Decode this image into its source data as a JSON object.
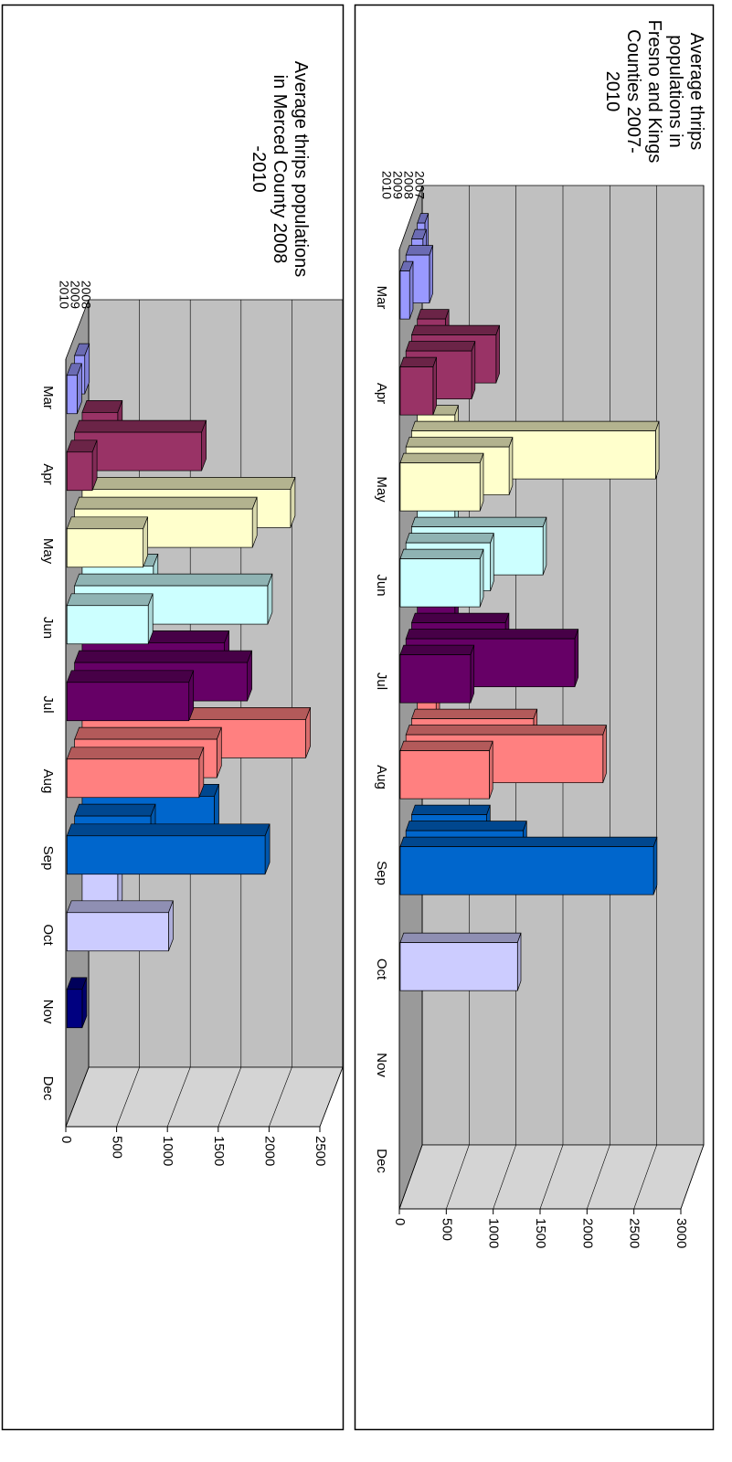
{
  "chart_data": [
    {
      "type": "bar",
      "title": "Average thrips populations in Fresno and Kings Counties 2007-2010",
      "categories": [
        "Mar",
        "Apr",
        "May",
        "Jun",
        "Jul",
        "Aug",
        "Sep",
        "Oct",
        "Nov",
        "Dec"
      ],
      "colors": [
        "#9999ff",
        "#993366",
        "#ffffcc",
        "#ccffff",
        "#660066",
        "#ff8080",
        "#0066cc",
        "#ccccff",
        "#000080",
        "#ff00ff"
      ],
      "series": [
        {
          "name": "2007",
          "values": [
            80,
            300,
            400,
            400,
            400,
            200,
            null,
            null,
            null,
            null
          ]
        },
        {
          "name": "2008",
          "values": [
            120,
            900,
            2600,
            1400,
            1000,
            1300,
            800,
            null,
            null,
            null
          ]
        },
        {
          "name": "2009",
          "values": [
            250,
            700,
            1100,
            900,
            1800,
            2100,
            1250,
            null,
            null,
            null
          ]
        },
        {
          "name": "2010",
          "values": [
            100,
            350,
            850,
            850,
            750,
            950,
            2700,
            1250,
            null,
            null
          ]
        }
      ],
      "ylim": [
        0,
        3000
      ],
      "yticks": [
        0,
        500,
        1000,
        1500,
        2000,
        2500,
        3000
      ],
      "grid": true
    },
    {
      "type": "bar",
      "title": "Average thrips populations in Merced County  2008 -2010",
      "categories": [
        "Mar",
        "Apr",
        "May",
        "Jun",
        "Jul",
        "Aug",
        "Sep",
        "Oct",
        "Nov",
        "Dec"
      ],
      "colors": [
        "#9999ff",
        "#993366",
        "#ffffcc",
        "#ccffff",
        "#660066",
        "#ff8080",
        "#0066cc",
        "#ccccff",
        "#000080",
        "#ff00ff"
      ],
      "series": [
        {
          "name": "2008",
          "values": [
            null,
            350,
            2050,
            700,
            1400,
            2200,
            1300,
            350,
            null,
            null
          ]
        },
        {
          "name": "2009",
          "values": [
            100,
            1250,
            1750,
            1900,
            1700,
            1400,
            750,
            null,
            null,
            null
          ]
        },
        {
          "name": "2010",
          "values": [
            100,
            250,
            750,
            800,
            1200,
            1300,
            1950,
            1000,
            150,
            null
          ]
        }
      ],
      "ylim": [
        0,
        2500
      ],
      "yticks": [
        0,
        500,
        1000,
        1500,
        2000,
        2500
      ],
      "grid": true
    }
  ]
}
